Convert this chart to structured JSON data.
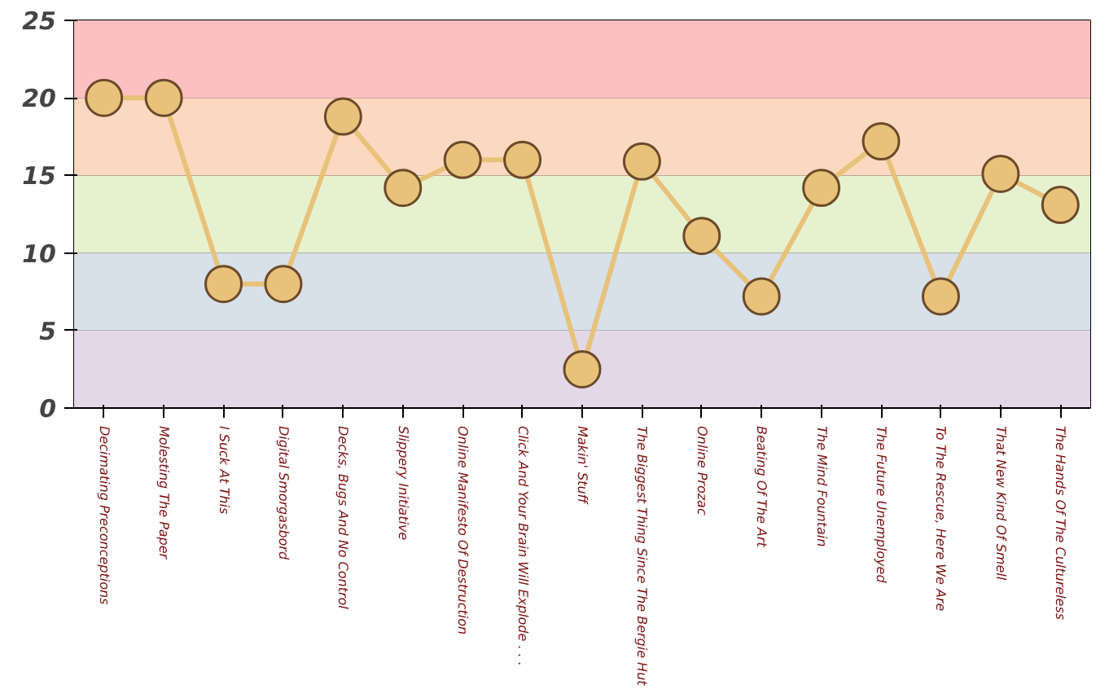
{
  "chart_data": {
    "type": "line",
    "categories": [
      "Decimating Preconceptions",
      "Molesting The Paper",
      "I Suck At This",
      "Digital Smorgasbord",
      "Decks, Bugs And No Control",
      "Slippery Initiative",
      "Online Manifesto Of Destruction",
      "Click And Your Brain Will Explode . . .",
      "Makin' Stuff",
      "The Biggest Thing Since The Bergie Hut",
      "Online Prozac",
      "Beating Of The Art",
      "The Mind Fountain",
      "The Future Unemployed",
      "To The Rescue, Here We Are",
      "That New Kind Of Smell",
      "The Hands Of The Cultureless"
    ],
    "series": [
      {
        "color": "#e8c27a",
        "values": [
          20,
          20,
          8,
          8,
          18.8,
          14.2,
          16,
          16,
          2.5,
          15.9,
          11.1,
          7.2,
          14.2,
          17.2,
          7.2,
          15.1,
          13.1
        ]
      }
    ],
    "ylim": [
      0,
      25
    ],
    "yticks": [
      0,
      5,
      10,
      15,
      20,
      25
    ],
    "grid": "y",
    "marker": "circle",
    "line_style": "solid",
    "bands": [
      {
        "axis": "y",
        "from": 0,
        "to": 5,
        "color": "#e3d8e8"
      },
      {
        "axis": "y",
        "from": 5,
        "to": 10,
        "color": "#d8e0e8"
      },
      {
        "axis": "y",
        "from": 10,
        "to": 15,
        "color": "#e6f2cf"
      },
      {
        "axis": "y",
        "from": 15,
        "to": 20,
        "color": "#fcd8c0"
      },
      {
        "axis": "y",
        "from": 20,
        "to": 25,
        "color": "#fcc0c0"
      }
    ]
  }
}
